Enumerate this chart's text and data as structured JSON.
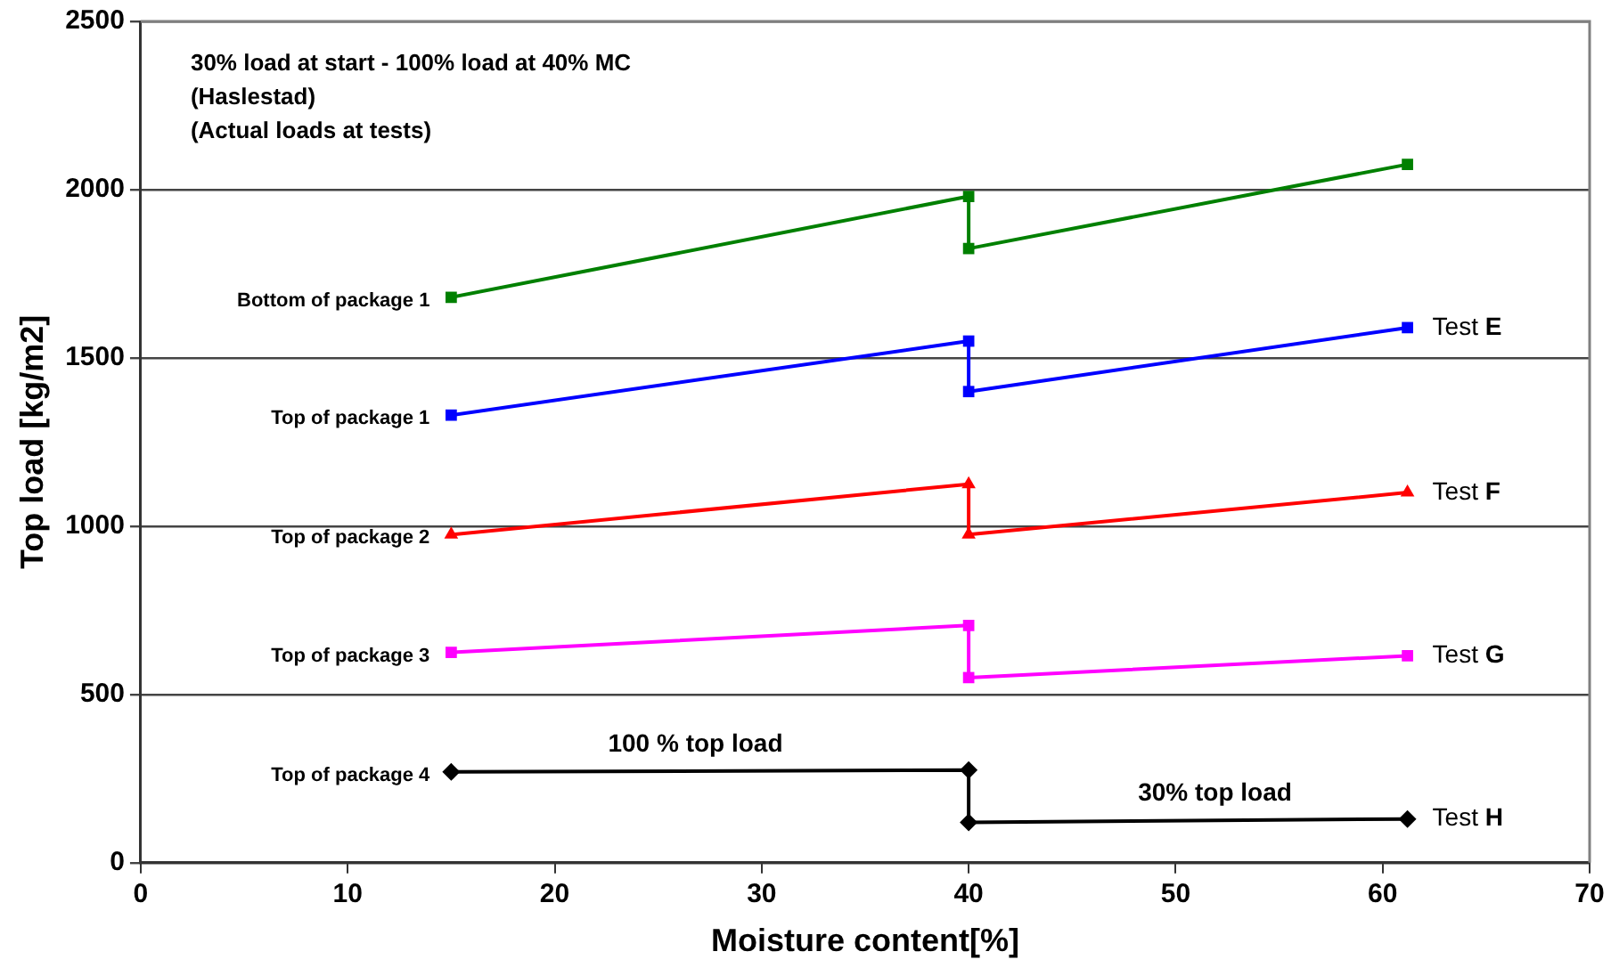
{
  "chart_data": {
    "type": "line",
    "xlabel": "Moisture content[%]",
    "ylabel": "Top load [kg/m2]",
    "xlim": [
      0,
      70
    ],
    "xticks": [
      0,
      10,
      20,
      30,
      40,
      50,
      60,
      70
    ],
    "ylim": [
      0,
      2500
    ],
    "yticks": [
      0,
      500,
      1000,
      1500,
      2000,
      2500
    ],
    "grid": "y",
    "legend": false,
    "series": [
      {
        "name": "Bottom of package 1",
        "color": "#008000",
        "marker": "square",
        "x": [
          15,
          40,
          40,
          61.2
        ],
        "values": [
          1680,
          1980,
          1825,
          2075
        ]
      },
      {
        "name": "Top of package 1",
        "color": "#0000ff",
        "marker": "square",
        "x": [
          15,
          40,
          40,
          61.2
        ],
        "values": [
          1330,
          1550,
          1400,
          1590
        ]
      },
      {
        "name": "Top of package 2",
        "color": "#ff0000",
        "marker": "triangle",
        "x": [
          15,
          40,
          40,
          61.2
        ],
        "values": [
          975,
          1125,
          975,
          1100
        ]
      },
      {
        "name": "Top of package 3",
        "color": "#ff00ff",
        "marker": "square",
        "x": [
          15,
          40,
          40,
          61.2
        ],
        "values": [
          625,
          705,
          550,
          615
        ]
      },
      {
        "name": "Top of package 4",
        "color": "#000000",
        "marker": "diamond",
        "x": [
          15,
          40,
          40,
          61.2
        ],
        "values": [
          270,
          275,
          120,
          130
        ]
      }
    ],
    "annotations": [
      "30% load at start - 100% load at 40% MC",
      "(Haslestad)",
      "(Actual loads at tests)",
      {
        "text": "Test E",
        "x": 61.2,
        "y": 1590
      },
      {
        "text": "Test F",
        "x": 61.2,
        "y": 1100
      },
      {
        "text": "Test G",
        "x": 61.2,
        "y": 615
      },
      {
        "text": "Test H",
        "x": 61.2,
        "y": 130
      },
      {
        "text": "100 % top load",
        "x": 26.8,
        "y": 272
      },
      {
        "text": "30% top load",
        "x": 51.9,
        "y": 125
      }
    ]
  }
}
